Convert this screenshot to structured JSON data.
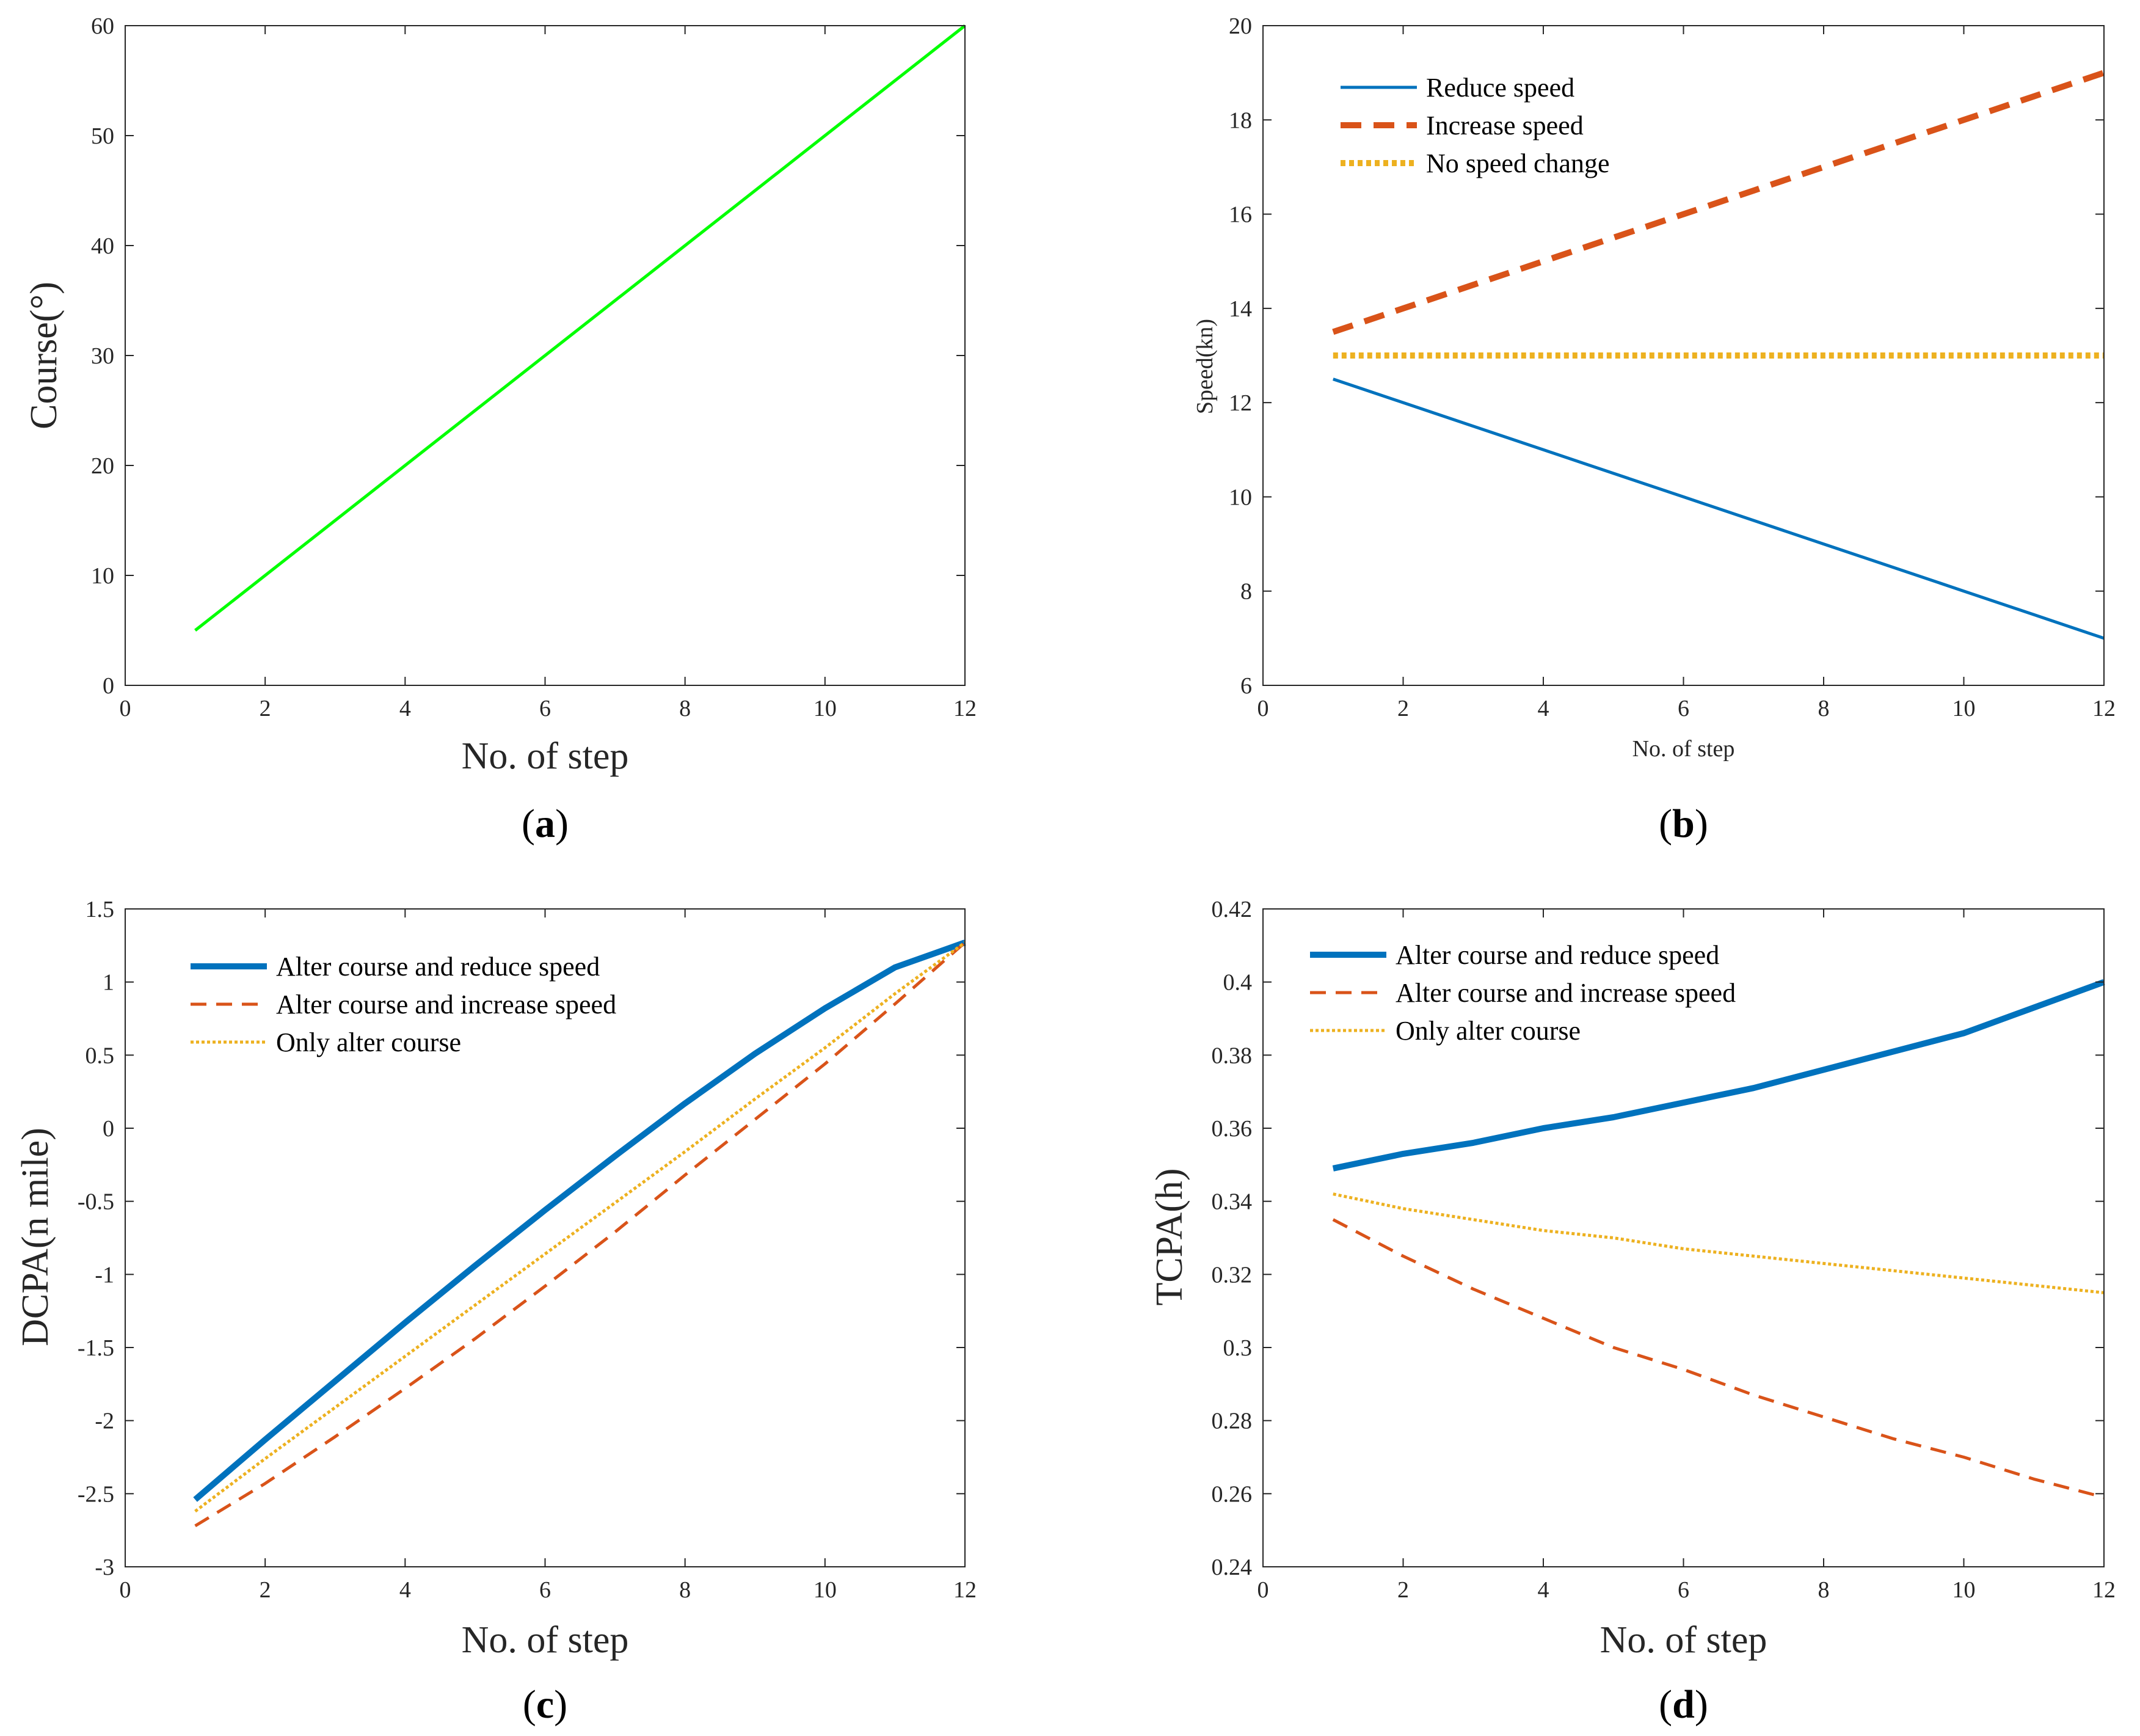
{
  "colors": {
    "green": "#00ff00",
    "blue": "#0072bd",
    "orange": "#d95319",
    "yellow": "#edb120",
    "axis": "#262626"
  },
  "chart_data": [
    {
      "id": "a",
      "type": "line",
      "panel_label": "a",
      "xlabel": "No. of step",
      "ylabel": "Course(°)",
      "xlim": [
        0,
        12
      ],
      "ylim": [
        0,
        60
      ],
      "xticks": [
        "0",
        "2",
        "4",
        "6",
        "8",
        "10",
        "12"
      ],
      "yticks": [
        "0",
        "10",
        "20",
        "30",
        "40",
        "50",
        "60"
      ],
      "legend": null,
      "series": [
        {
          "name": "Course",
          "color": "#00ff00",
          "style": "solid",
          "weight": "medium",
          "x": [
            1,
            2,
            3,
            4,
            5,
            6,
            7,
            8,
            9,
            10,
            11,
            12
          ],
          "values": [
            5,
            10,
            15,
            20,
            25,
            30,
            35,
            40,
            45,
            50,
            55,
            60
          ]
        }
      ]
    },
    {
      "id": "b",
      "type": "line",
      "panel_label": "b",
      "xlabel": "No. of step",
      "ylabel": "Speed(kn)",
      "small_titles": true,
      "xlim": [
        0,
        12
      ],
      "ylim": [
        6,
        20
      ],
      "xticks": [
        "0",
        "2",
        "4",
        "6",
        "8",
        "10",
        "12"
      ],
      "yticks": [
        "6",
        "8",
        "10",
        "12",
        "14",
        "16",
        "18",
        "20"
      ],
      "legend": "top-left",
      "series": [
        {
          "name": "Reduce speed",
          "color": "#0072bd",
          "style": "solid",
          "weight": "medium",
          "x": [
            1,
            2,
            3,
            4,
            5,
            6,
            7,
            8,
            9,
            10,
            11,
            12
          ],
          "values": [
            12.5,
            12.0,
            11.5,
            11.0,
            10.5,
            10.0,
            9.5,
            9.0,
            8.5,
            8.0,
            7.5,
            7.0
          ]
        },
        {
          "name": "Increase speed",
          "color": "#d95319",
          "style": "dashed",
          "weight": "heavy",
          "x": [
            1,
            2,
            3,
            4,
            5,
            6,
            7,
            8,
            9,
            10,
            11,
            12
          ],
          "values": [
            13.5,
            14.0,
            14.5,
            15.0,
            15.5,
            16.0,
            16.5,
            17.0,
            17.5,
            18.0,
            18.5,
            19.0
          ]
        },
        {
          "name": "No speed change",
          "color": "#edb120",
          "style": "dotted",
          "weight": "heavy",
          "x": [
            1,
            2,
            3,
            4,
            5,
            6,
            7,
            8,
            9,
            10,
            11,
            12
          ],
          "values": [
            13,
            13,
            13,
            13,
            13,
            13,
            13,
            13,
            13,
            13,
            13,
            13
          ]
        }
      ]
    },
    {
      "id": "c",
      "type": "line",
      "panel_label": "c",
      "xlabel": "No. of step",
      "ylabel": "DCPA(n mile)",
      "xlim": [
        0,
        12
      ],
      "ylim": [
        -3,
        1.5
      ],
      "xticks": [
        "0",
        "2",
        "4",
        "6",
        "8",
        "10",
        "12"
      ],
      "yticks": [
        "-3",
        "-2.5",
        "-2",
        "-1.5",
        "-1",
        "-0.5",
        "0",
        "0.5",
        "1",
        "1.5"
      ],
      "legend": "top-left",
      "series": [
        {
          "name": "Alter course and reduce speed",
          "color": "#0072bd",
          "style": "solid",
          "weight": "heavy",
          "x": [
            1,
            2,
            3,
            4,
            5,
            6,
            7,
            8,
            9,
            10,
            11,
            12
          ],
          "values": [
            -2.54,
            -2.13,
            -1.73,
            -1.33,
            -0.94,
            -0.56,
            -0.19,
            0.17,
            0.51,
            0.82,
            1.1,
            1.27
          ]
        },
        {
          "name": "Alter course and increase speed",
          "color": "#d95319",
          "style": "dashed",
          "weight": "medium",
          "x": [
            1,
            2,
            3,
            4,
            5,
            6,
            7,
            8,
            9,
            10,
            11,
            12
          ],
          "values": [
            -2.72,
            -2.43,
            -2.11,
            -1.78,
            -1.44,
            -1.08,
            -0.71,
            -0.32,
            0.06,
            0.44,
            0.85,
            1.27
          ]
        },
        {
          "name": "Only alter course",
          "color": "#edb120",
          "style": "dotted",
          "weight": "medium",
          "x": [
            1,
            2,
            3,
            4,
            5,
            6,
            7,
            8,
            9,
            10,
            11,
            12
          ],
          "values": [
            -2.62,
            -2.26,
            -1.91,
            -1.56,
            -1.21,
            -0.86,
            -0.51,
            -0.16,
            0.2,
            0.55,
            0.92,
            1.27
          ]
        }
      ]
    },
    {
      "id": "d",
      "type": "line",
      "panel_label": "d",
      "xlabel": "No. of step",
      "ylabel": "TCPA(h)",
      "xlim": [
        0,
        12
      ],
      "ylim": [
        0.24,
        0.42
      ],
      "xticks": [
        "0",
        "2",
        "4",
        "6",
        "8",
        "10",
        "12"
      ],
      "yticks": [
        "0.24",
        "0.26",
        "0.28",
        "0.3",
        "0.32",
        "0.34",
        "0.36",
        "0.38",
        "0.4",
        "0.42"
      ],
      "legend": "top-left",
      "series": [
        {
          "name": "Alter course and reduce speed",
          "color": "#0072bd",
          "style": "solid",
          "weight": "heavy",
          "x": [
            1,
            2,
            3,
            4,
            5,
            6,
            7,
            8,
            9,
            10,
            11,
            12
          ],
          "values": [
            0.349,
            0.353,
            0.356,
            0.36,
            0.363,
            0.367,
            0.371,
            0.376,
            0.381,
            0.386,
            0.393,
            0.4
          ]
        },
        {
          "name": "Alter course and increase speed",
          "color": "#d95319",
          "style": "dashed",
          "weight": "medium",
          "x": [
            1,
            2,
            3,
            4,
            5,
            6,
            7,
            8,
            9,
            10,
            11,
            12
          ],
          "values": [
            0.335,
            0.325,
            0.316,
            0.308,
            0.3,
            0.294,
            0.287,
            0.281,
            0.275,
            0.27,
            0.264,
            0.259
          ]
        },
        {
          "name": "Only alter course",
          "color": "#edb120",
          "style": "dotted",
          "weight": "medium",
          "x": [
            1,
            2,
            3,
            4,
            5,
            6,
            7,
            8,
            9,
            10,
            11,
            12
          ],
          "values": [
            0.342,
            0.338,
            0.335,
            0.332,
            0.33,
            0.327,
            0.325,
            0.323,
            0.321,
            0.319,
            0.317,
            0.315
          ]
        }
      ]
    }
  ]
}
